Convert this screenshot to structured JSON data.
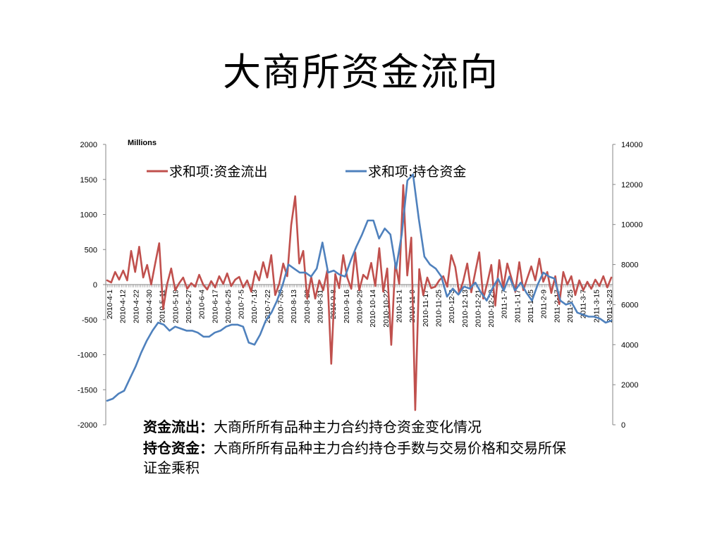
{
  "slide": {
    "title": "大商所资金流向"
  },
  "chart_data": {
    "type": "line",
    "units_label": "Millions",
    "ylim": [
      -2000,
      2000
    ],
    "y_ticks": [
      -2000,
      -1500,
      -1000,
      -500,
      0,
      500,
      1000,
      1500,
      2000
    ],
    "y2lim": [
      0,
      14000
    ],
    "y2_ticks": [
      0,
      2000,
      4000,
      6000,
      8000,
      10000,
      12000,
      14000
    ],
    "legend_position": "top",
    "grid": false,
    "x_tick_labels": [
      "2010-4-1",
      "2010-4-12",
      "2010-4-22",
      "2010-4-30",
      "2010-5-11",
      "2010-5-19",
      "2010-5-27",
      "2010-6-4",
      "2010-6-17",
      "2010-6-25",
      "2010-7-5",
      "2010-7-13",
      "2010-7-22",
      "2010-7-30",
      "2010-8-13",
      "2010-8-23",
      "2010-8-31",
      "2010-9-8",
      "2010-9-16",
      "2010-9-29",
      "2010-10-14",
      "2010-10-22",
      "2010-11-1",
      "2010-11-9",
      "2010-11-17",
      "2010-11-25",
      "2010-12-3",
      "2010-12-13",
      "2010-12-21",
      "2010-12-29",
      "2011-1-7",
      "2011-1-17",
      "2011-1-25",
      "2011-2-9",
      "2011-2-17",
      "2011-2-25",
      "2011-3-7",
      "2011-3-15",
      "2011-3-23"
    ],
    "series": [
      {
        "name": "求和项:资金流出",
        "axis": "left",
        "color": "#c0504d",
        "values": [
          60,
          30,
          180,
          70,
          200,
          60,
          480,
          180,
          540,
          100,
          280,
          0,
          300,
          590,
          -350,
          10,
          230,
          -80,
          20,
          100,
          -60,
          20,
          -30,
          140,
          0,
          -70,
          50,
          -40,
          120,
          10,
          160,
          -20,
          70,
          110,
          -40,
          60,
          -100,
          190,
          60,
          320,
          100,
          420,
          -150,
          10,
          300,
          120,
          850,
          1260,
          300,
          480,
          -200,
          110,
          -200,
          60,
          -80,
          200,
          -1130,
          150,
          -50,
          420,
          100,
          -60,
          460,
          -80,
          140,
          80,
          310,
          -20,
          520,
          -100,
          230,
          -860,
          310,
          10,
          1420,
          130,
          670,
          -1790,
          220,
          -150,
          100,
          -50,
          -30,
          60,
          120,
          -30,
          420,
          250,
          -130,
          50,
          300,
          -110,
          180,
          460,
          -200,
          20,
          280,
          -300,
          350,
          -50,
          300,
          100,
          -100,
          320,
          -80,
          90,
          260,
          60,
          370,
          40,
          180,
          -120,
          120,
          -280,
          180,
          0,
          120,
          -150,
          60,
          -80,
          40,
          -60,
          70,
          -20,
          120,
          -40,
          100
        ]
      },
      {
        "name": "求和项:持仓资金",
        "axis": "right",
        "color": "#4f81bd",
        "values": [
          1200,
          1300,
          1550,
          1700,
          2300,
          2900,
          3600,
          4200,
          4700,
          5100,
          5000,
          4700,
          4900,
          4800,
          4700,
          4700,
          4600,
          4400,
          4400,
          4600,
          4700,
          4900,
          5000,
          5000,
          4900,
          4100,
          4000,
          4500,
          5200,
          5600,
          6200,
          7000,
          8000,
          7800,
          7600,
          7600,
          7400,
          7800,
          9100,
          7600,
          7700,
          7500,
          7400,
          8200,
          8900,
          9500,
          10200,
          10200,
          9300,
          9800,
          9500,
          7800,
          9500,
          12200,
          12500,
          10300,
          8400,
          8000,
          7800,
          7400,
          6400,
          6800,
          6500,
          6900,
          6800,
          7100,
          6600,
          6200,
          6800,
          7300,
          6700,
          7400,
          6700,
          7100,
          6600,
          6200,
          7000,
          7600,
          7400,
          7300,
          6200,
          6000,
          6100,
          5600,
          5500,
          5400,
          5400,
          5300,
          5100,
          5200
        ]
      }
    ]
  },
  "notes": [
    {
      "key": "资金流出：",
      "text": "大商所所有品种主力合约持仓资金变化情况"
    },
    {
      "key": "持仓资金：",
      "text": "大商所所有品种主力合约持仓手数与交易价格和交易所保证金乘积"
    }
  ]
}
